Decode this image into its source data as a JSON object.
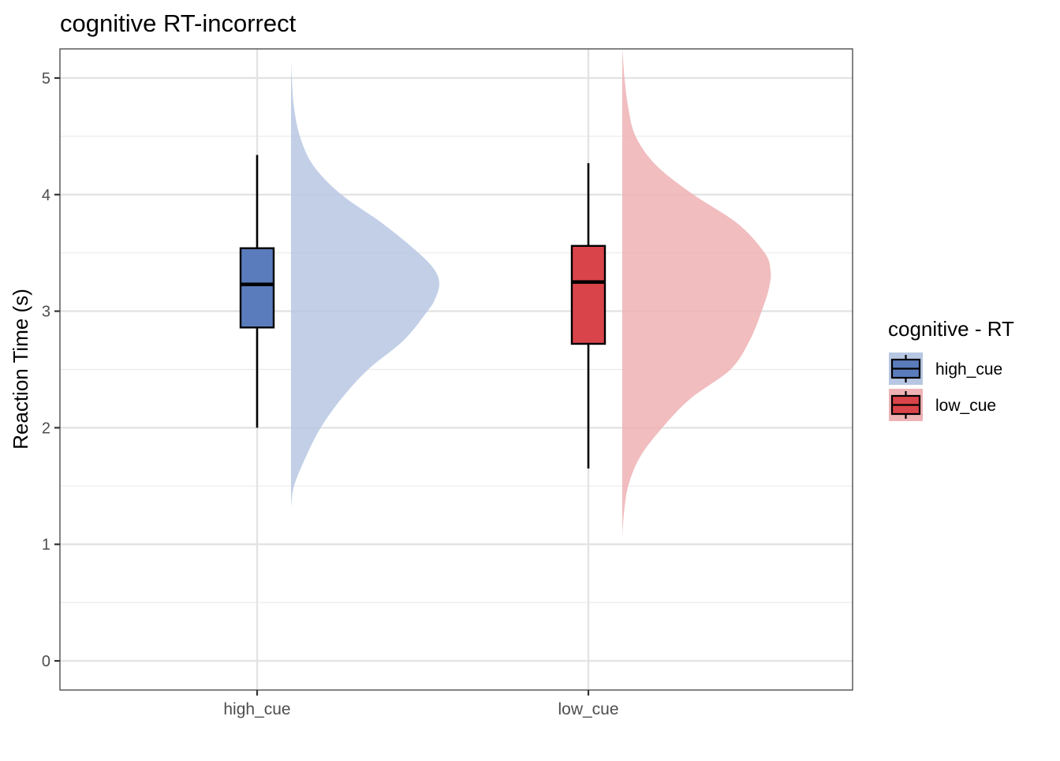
{
  "chart_data": {
    "type": "box-violin",
    "title": "cognitive RT-incorrect",
    "xlabel": "",
    "ylabel": "Reaction Time (s)",
    "ylim": [
      -0.25,
      5.25
    ],
    "yticks": [
      0,
      1,
      2,
      3,
      4,
      5
    ],
    "grid": true,
    "categories": [
      "high_cue",
      "low_cue"
    ],
    "legend": {
      "title": "cognitive  - RT",
      "placement": "right",
      "entries": [
        "high_cue",
        "low_cue"
      ]
    },
    "colors": {
      "high_cue_box": "#5b7cbc",
      "high_cue_violin": "#b7c7e3",
      "low_cue_box": "#d9444a",
      "low_cue_violin": "#eeb2b4"
    },
    "series": [
      {
        "name": "high_cue",
        "box": {
          "whisker_low": 2.0,
          "q1": 2.86,
          "median": 3.23,
          "q3": 3.54,
          "whisker_high": 4.34
        },
        "density": {
          "y": [
            1.32,
            1.5,
            1.75,
            2.0,
            2.25,
            2.5,
            2.75,
            3.0,
            3.1,
            3.23,
            3.35,
            3.5,
            3.75,
            4.0,
            4.25,
            4.5,
            4.75,
            5.0,
            5.15
          ],
          "width": [
            0.0,
            0.02,
            0.1,
            0.2,
            0.34,
            0.52,
            0.76,
            0.92,
            0.97,
            1.0,
            0.97,
            0.86,
            0.62,
            0.34,
            0.15,
            0.06,
            0.02,
            0.005,
            0.0
          ]
        }
      },
      {
        "name": "low_cue",
        "box": {
          "whisker_low": 1.65,
          "q1": 2.72,
          "median": 3.25,
          "q3": 3.56,
          "whisker_high": 4.27
        },
        "density": {
          "y": [
            1.05,
            1.25,
            1.5,
            1.75,
            2.0,
            2.25,
            2.5,
            2.75,
            3.0,
            3.2,
            3.35,
            3.5,
            3.75,
            4.0,
            4.25,
            4.5,
            4.75,
            5.0,
            5.25
          ],
          "width": [
            0.0,
            0.01,
            0.04,
            0.12,
            0.27,
            0.46,
            0.73,
            0.86,
            0.94,
            0.99,
            1.0,
            0.96,
            0.78,
            0.48,
            0.23,
            0.09,
            0.04,
            0.015,
            0.0
          ]
        }
      }
    ]
  }
}
